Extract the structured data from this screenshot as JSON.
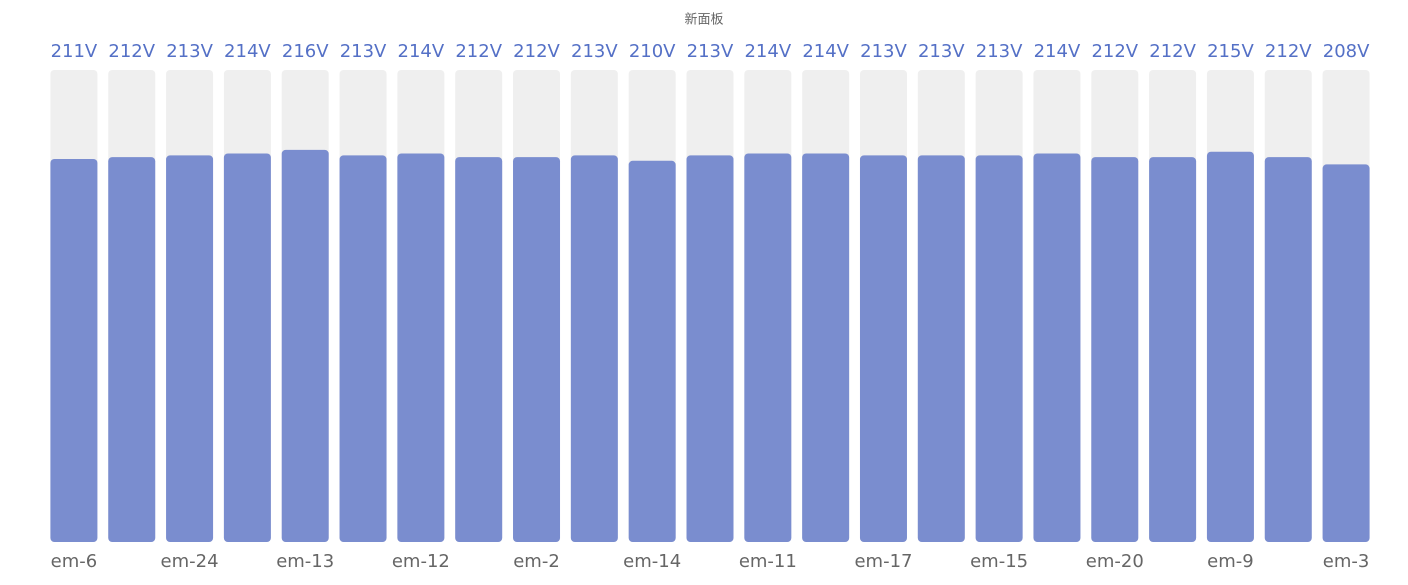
{
  "chart_data": {
    "type": "bar",
    "title": "新面板",
    "categories": [
      "em-6",
      null,
      "em-24",
      null,
      "em-13",
      null,
      "em-12",
      null,
      "em-2",
      null,
      "em-14",
      null,
      "em-11",
      null,
      "em-17",
      null,
      "em-15",
      null,
      "em-20",
      null,
      "em-9",
      null,
      "em-3"
    ],
    "values": [
      211,
      212,
      213,
      214,
      216,
      213,
      214,
      212,
      212,
      213,
      210,
      213,
      214,
      214,
      213,
      213,
      213,
      214,
      212,
      212,
      215,
      212,
      208
    ],
    "value_labels": [
      "211V",
      "212V",
      "213V",
      "214V",
      "216V",
      "213V",
      "214V",
      "212V",
      "212V",
      "213V",
      "210V",
      "213V",
      "214V",
      "214V",
      "213V",
      "213V",
      "213V",
      "214V",
      "212V",
      "212V",
      "215V",
      "212V",
      "208V"
    ],
    "color": "#7a8dcf",
    "background_color": "#efefef",
    "label_color": "#5470c6",
    "ylim": [
      0,
      260
    ]
  }
}
